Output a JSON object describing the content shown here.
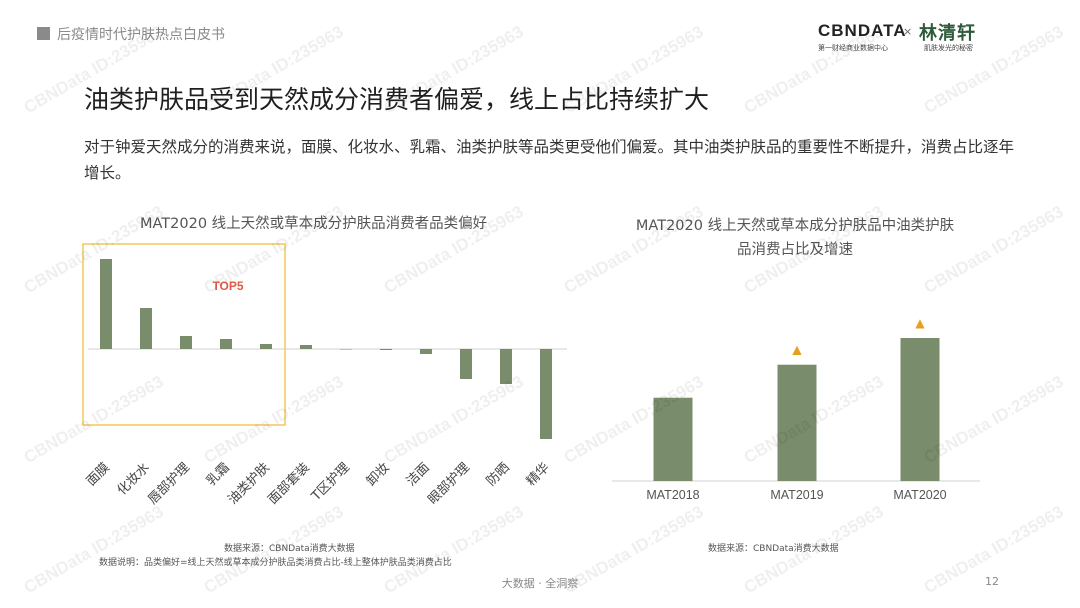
{
  "header": {
    "report_title": "后疫情时代护肤热点白皮书"
  },
  "brand": {
    "cbn": "CBNDATA",
    "cbn_sub": "第一财经商业数据中心",
    "times": "×",
    "partner": "林清轩",
    "partner_sub": "肌肤发光的秘密"
  },
  "title": "油类护肤品受到天然成分消费者偏爱，线上占比持续扩大",
  "description": "对于钟爱天然成分的消费来说，面膜、化妆水、乳霜、油类护肤等品类更受他们偏爱。其中油类护肤品的重要性不断提升，消费占比逐年增长。",
  "left_chart": {
    "title": "MAT2020 线上天然或草本成分护肤品消费者品类偏好",
    "highlight_label": "TOP5",
    "source": "数据来源：CBNData消费大数据",
    "note": "数据说明：品类偏好=线上天然或草本成分护肤品类消费占比-线上整体护肤品类消费占比"
  },
  "right_chart": {
    "title_line1": "MAT2020 线上天然或草本成分护肤品中油类护肤",
    "title_line2": "品消费占比及增速",
    "source": "数据来源：CBNData消费大数据"
  },
  "chart_data": [
    {
      "type": "bar",
      "title": "MAT2020 线上天然或草本成分护肤品消费者品类偏好",
      "categories": [
        "面膜",
        "化妆水",
        "唇部护理",
        "乳霜",
        "油类护肤",
        "面部套装",
        "T区护理",
        "卸妆",
        "洁面",
        "眼部护理",
        "防晒",
        "精华"
      ],
      "values": [
        9.0,
        4.1,
        1.3,
        1.0,
        0.5,
        0.4,
        0.0,
        -0.1,
        -0.5,
        -3.0,
        -3.5,
        -9.0
      ],
      "ylim": [
        -10,
        10
      ],
      "highlight": {
        "label": "TOP5",
        "categories": [
          "面膜",
          "化妆水",
          "唇部护理",
          "乳霜",
          "油类护肤"
        ]
      },
      "color": "#798c6b",
      "grid": false
    },
    {
      "type": "bar",
      "title": "MAT2020 线上天然或草本成分护肤品中油类护肤品消费占比及增速",
      "categories": [
        "MAT2018",
        "MAT2019",
        "MAT2020"
      ],
      "values": [
        5.3,
        7.4,
        9.1
      ],
      "ylim": [
        0,
        10
      ],
      "growth_markers": [
        "",
        "▲",
        "▲"
      ],
      "color": "#798c6b",
      "marker_color": "#e6a020",
      "grid": false
    }
  ],
  "footer": {
    "slogan": "大数据 · 全洞察",
    "page": "12"
  },
  "watermark": "CBNData ID:235963"
}
